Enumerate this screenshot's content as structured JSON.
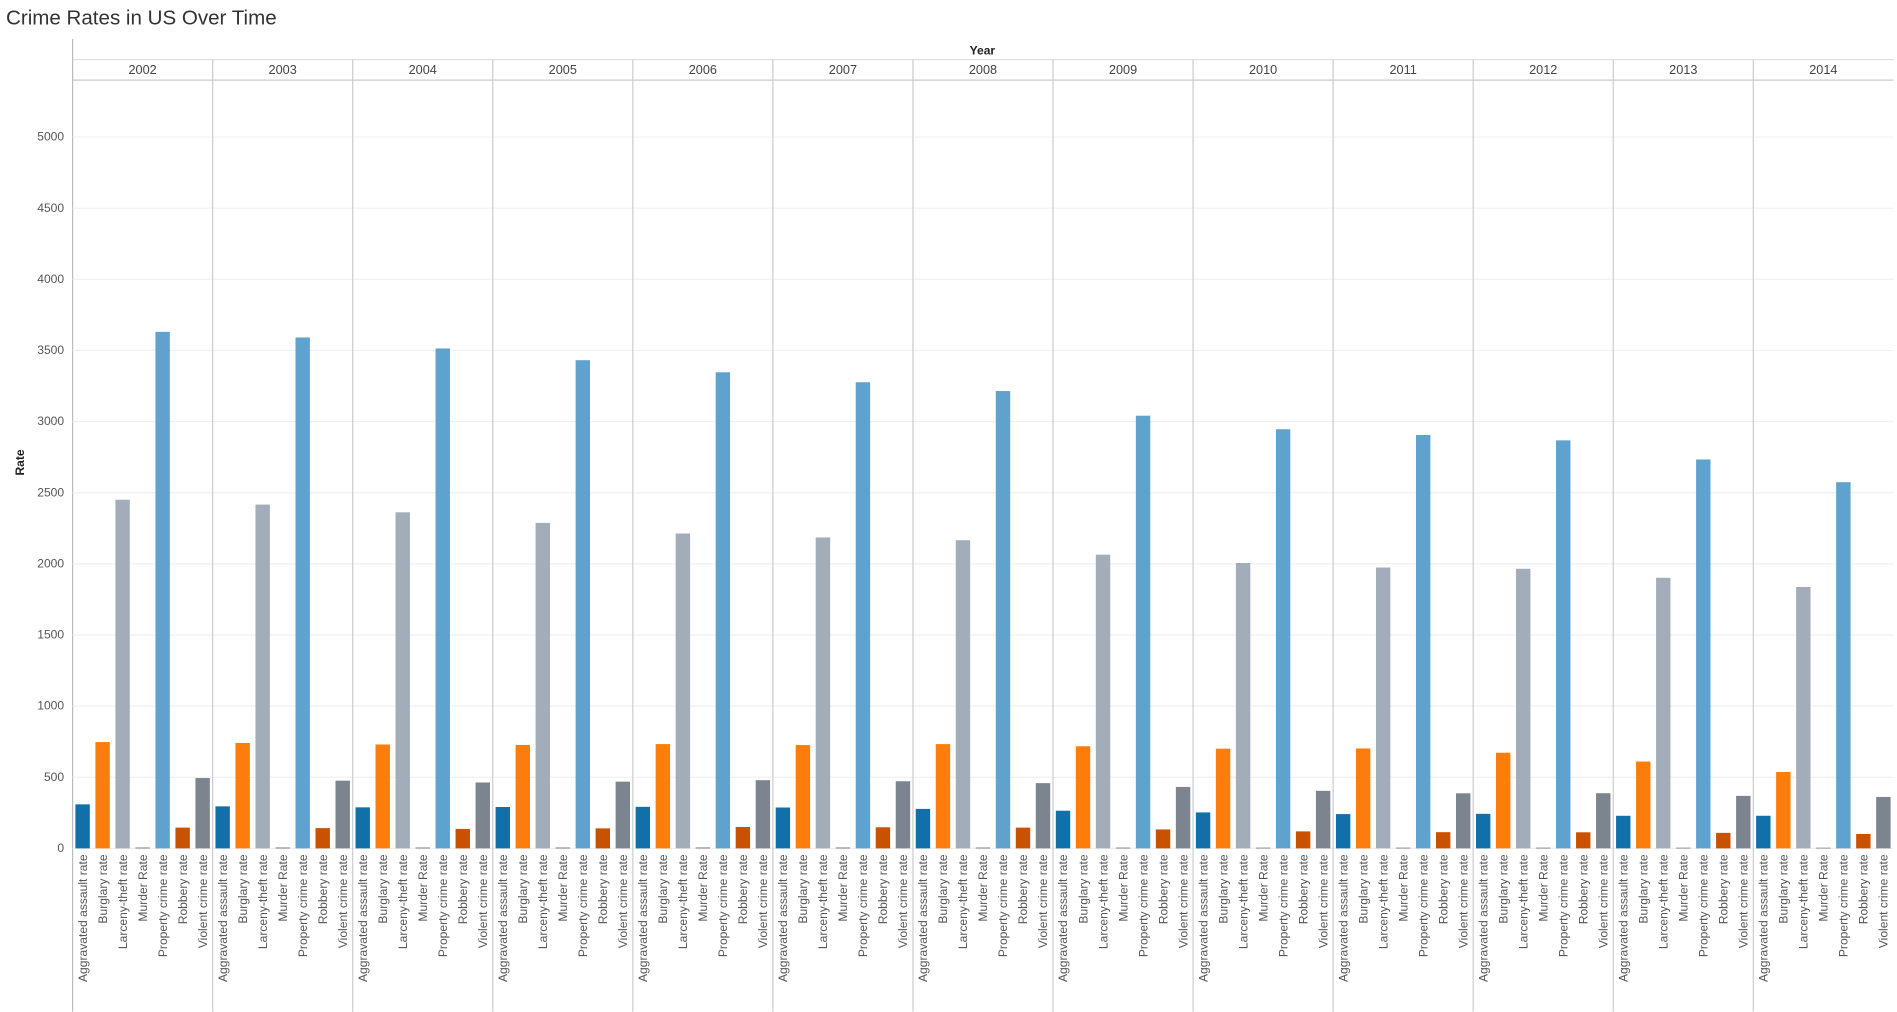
{
  "chart_data": {
    "type": "bar",
    "title": "Crime Rates in US Over Time",
    "x_label": "Year",
    "y_label": "Rate",
    "categories": [
      "2002",
      "2003",
      "2004",
      "2005",
      "2006",
      "2007",
      "2008",
      "2009",
      "2010",
      "2011",
      "2012",
      "2013",
      "2014"
    ],
    "series": [
      {
        "name": "Aggravated assault rate",
        "color": "#1170aa",
        "values": [
          309.5,
          295.4,
          288.6,
          290.8,
          292.0,
          287.2,
          277.5,
          264.7,
          252.8,
          241.1,
          242.8,
          229.1,
          229.2
        ]
      },
      {
        "name": "Burglary rate",
        "color": "#fc7d0b",
        "values": [
          747.0,
          741.0,
          730.3,
          726.9,
          733.1,
          726.1,
          733.0,
          717.7,
          701.0,
          702.2,
          672.2,
          610.5,
          537.2
        ]
      },
      {
        "name": "Larceny-theft rate",
        "color": "#a3acb9",
        "values": [
          2450.7,
          2416.5,
          2362.3,
          2287.8,
          2213.2,
          2185.4,
          2166.1,
          2064.5,
          2005.8,
          1974.1,
          1965.4,
          1901.9,
          1837.3
        ]
      },
      {
        "name": "Murder Rate",
        "color": "#57606c",
        "values": [
          5.6,
          5.7,
          5.5,
          5.6,
          5.8,
          5.7,
          5.4,
          5.0,
          4.8,
          4.7,
          4.7,
          4.5,
          4.4
        ]
      },
      {
        "name": "Property crime rate",
        "color": "#5fa2ce",
        "values": [
          3630.6,
          3591.2,
          3514.1,
          3431.5,
          3346.6,
          3276.4,
          3214.6,
          3041.3,
          2945.9,
          2905.4,
          2868.0,
          2733.6,
          2574.1
        ]
      },
      {
        "name": "Robbery rate",
        "color": "#c85200",
        "values": [
          146.1,
          142.5,
          136.7,
          140.8,
          150.6,
          148.3,
          145.9,
          133.1,
          119.3,
          113.9,
          113.1,
          109.0,
          101.3
        ]
      },
      {
        "name": "Violent crime rate",
        "color": "#7b848f",
        "values": [
          494.4,
          475.8,
          463.2,
          469.0,
          479.3,
          471.8,
          458.6,
          431.9,
          404.5,
          387.1,
          387.8,
          369.1,
          361.6
        ]
      }
    ],
    "ylim": [
      0,
      5400
    ],
    "yticks": [
      0,
      500,
      1000,
      1500,
      2000,
      2500,
      3000,
      3500,
      4000,
      4500,
      5000
    ],
    "grid": true
  }
}
